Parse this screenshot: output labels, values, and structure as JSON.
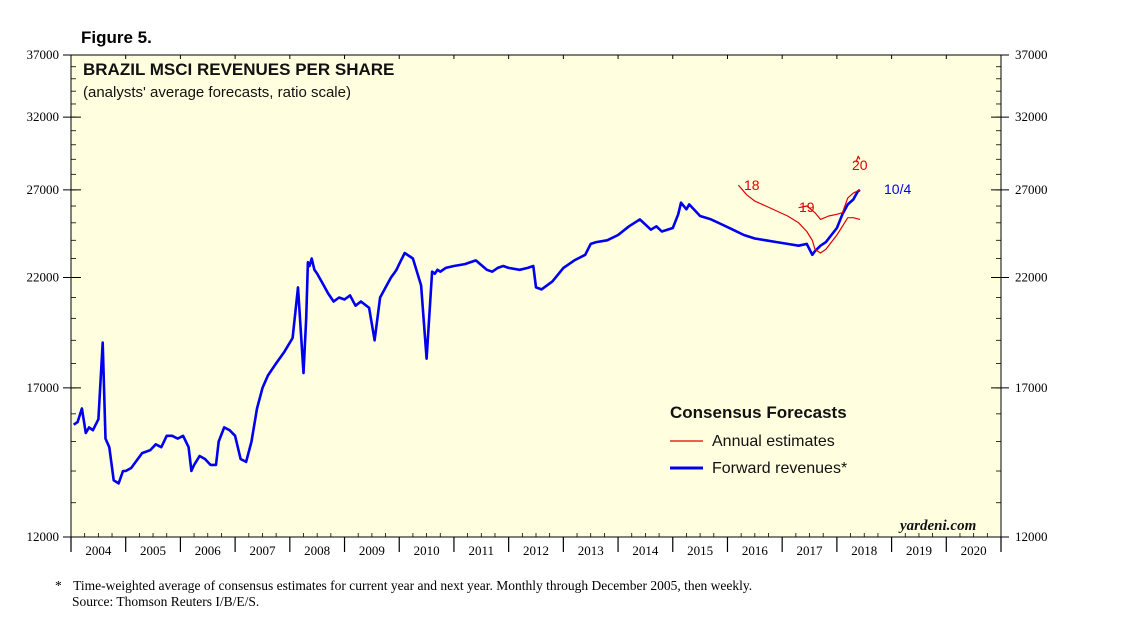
{
  "figure_label": "Figure 5.",
  "footnote_marker": "*",
  "footnote": "Time-weighted average of consensus estimates for current year and next year. Monthly through December 2005, then weekly.",
  "source": "Source: Thomson Reuters I/B/E/S.",
  "watermark": "yardeni.com",
  "colors": {
    "background": "#ffffe0",
    "annual": "#e00000",
    "forward": "#0000ee"
  },
  "chart_data": {
    "type": "line",
    "title": "BRAZIL MSCI REVENUES PER SHARE",
    "subtitle": "(analysts' average forecasts, ratio scale)",
    "y_scale": "log",
    "ylim": [
      12000,
      37000
    ],
    "y_ticks": [
      "12000",
      "17000",
      "22000",
      "27000",
      "32000",
      "37000"
    ],
    "x_range": [
      2004.0,
      2021.0
    ],
    "x_ticks": [
      "2004",
      "2005",
      "2006",
      "2007",
      "2008",
      "2009",
      "2010",
      "2011",
      "2012",
      "2013",
      "2014",
      "2015",
      "2016",
      "2017",
      "2018",
      "2019",
      "2020"
    ],
    "legend": {
      "title": "Consensus Forecasts",
      "entries": [
        "Annual estimates",
        "Forward revenues*"
      ]
    },
    "annotations": [
      "18",
      "19",
      "20",
      "10/4"
    ],
    "series": [
      {
        "name": "Forward revenues*",
        "x": [
          2004.05,
          2004.12,
          2004.2,
          2004.27,
          2004.33,
          2004.4,
          2004.5,
          2004.58,
          2004.63,
          2004.7,
          2004.78,
          2004.87,
          2004.95,
          2005.0,
          2005.1,
          2005.3,
          2005.45,
          2005.55,
          2005.65,
          2005.75,
          2005.85,
          2005.95,
          2006.05,
          2006.15,
          2006.2,
          2006.25,
          2006.35,
          2006.45,
          2006.55,
          2006.65,
          2006.7,
          2006.8,
          2006.9,
          2007.0,
          2007.1,
          2007.2,
          2007.3,
          2007.4,
          2007.5,
          2007.6,
          2007.75,
          2007.9,
          2008.05,
          2008.15,
          2008.25,
          2008.3,
          2008.33,
          2008.36,
          2008.4,
          2008.45,
          2008.5,
          2008.6,
          2008.7,
          2008.8,
          2008.9,
          2009.0,
          2009.1,
          2009.2,
          2009.3,
          2009.45,
          2009.55,
          2009.65,
          2009.75,
          2009.85,
          2009.9,
          2009.95,
          2010.0,
          2010.1,
          2010.25,
          2010.4,
          2010.5,
          2010.6,
          2010.65,
          2010.7,
          2010.75,
          2010.85,
          2011.0,
          2011.2,
          2011.4,
          2011.6,
          2011.7,
          2011.8,
          2011.9,
          2012.0,
          2012.2,
          2012.35,
          2012.45,
          2012.5,
          2012.6,
          2012.8,
          2013.0,
          2013.2,
          2013.4,
          2013.5,
          2013.6,
          2013.8,
          2014.0,
          2014.2,
          2014.4,
          2014.6,
          2014.7,
          2014.8,
          2015.0,
          2015.1,
          2015.15,
          2015.25,
          2015.3,
          2015.5,
          2015.7,
          2015.9,
          2016.1,
          2016.3,
          2016.5,
          2016.7,
          2016.9,
          2017.1,
          2017.3,
          2017.45,
          2017.55,
          2017.6,
          2017.7,
          2017.8,
          2017.9,
          2018.0,
          2018.1,
          2018.2,
          2018.3,
          2018.38,
          2018.42
        ],
        "y": [
          15600,
          15700,
          16200,
          15300,
          15500,
          15400,
          15800,
          18900,
          15100,
          14800,
          13700,
          13600,
          14000,
          14000,
          14100,
          14600,
          14700,
          14900,
          14800,
          15200,
          15200,
          15100,
          15200,
          14800,
          14000,
          14200,
          14500,
          14400,
          14200,
          14200,
          15000,
          15500,
          15400,
          15200,
          14400,
          14300,
          15000,
          16200,
          17000,
          17500,
          18000,
          18500,
          19100,
          21500,
          17600,
          20000,
          22800,
          22600,
          23000,
          22400,
          22200,
          21700,
          21200,
          20800,
          21000,
          20900,
          21100,
          20600,
          20800,
          20500,
          19000,
          21000,
          21500,
          22000,
          22200,
          22400,
          22700,
          23300,
          23000,
          21600,
          18200,
          22300,
          22200,
          22400,
          22300,
          22500,
          22600,
          22700,
          22900,
          22400,
          22300,
          22500,
          22600,
          22500,
          22400,
          22500,
          22600,
          21500,
          21400,
          21800,
          22500,
          22900,
          23200,
          23800,
          23900,
          24000,
          24300,
          24800,
          25200,
          24600,
          24800,
          24500,
          24700,
          25500,
          26200,
          25800,
          26100,
          25400,
          25200,
          24900,
          24600,
          24300,
          24100,
          24000,
          23900,
          23800,
          23700,
          23800,
          23200,
          23400,
          23700,
          23900,
          24300,
          24700,
          25500,
          26100,
          26400,
          26900,
          27000
        ]
      },
      {
        "name": "Annual estimates 18",
        "x": [
          2016.2,
          2016.35,
          2016.5,
          2016.7,
          2016.9,
          2017.1,
          2017.3,
          2017.45,
          2017.55,
          2017.6,
          2017.7,
          2017.8,
          2017.9,
          2018.0,
          2018.1,
          2018.2,
          2018.3,
          2018.42
        ],
        "y": [
          27300,
          26700,
          26300,
          26000,
          25700,
          25400,
          25000,
          24500,
          24000,
          23500,
          23300,
          23500,
          23900,
          24300,
          24800,
          25300,
          25300,
          25200
        ]
      },
      {
        "name": "Annual estimates 19",
        "x": [
          2017.3,
          2017.45,
          2017.6,
          2017.7,
          2017.85,
          2018.0,
          2018.1,
          2018.2,
          2018.3,
          2018.42
        ],
        "y": [
          25900,
          26000,
          25600,
          25200,
          25400,
          25500,
          25600,
          26500,
          26800,
          27000
        ]
      },
      {
        "name": "Annual estimates 20",
        "x": [
          2018.35,
          2018.39,
          2018.42
        ],
        "y": [
          28800,
          29200,
          29000
        ]
      }
    ]
  }
}
